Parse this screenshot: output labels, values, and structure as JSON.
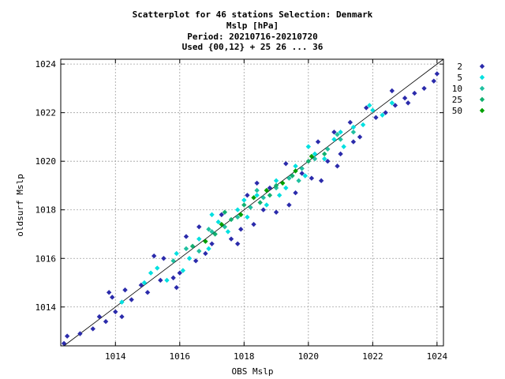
{
  "chart_data": {
    "type": "scatter",
    "title_lines": [
      "Scatterplot for   46 stations Selection: Denmark",
      "Mslp [hPa]",
      "Period: 20210716-20210720",
      "Used {00,12} + 25 26 ... 36"
    ],
    "xlabel": "OBS Mslp",
    "ylabel": "oldsurf Mslp",
    "xlim": [
      1012.3,
      1024.2
    ],
    "ylim": [
      1012.4,
      1024.2
    ],
    "xticks": [
      1014,
      1016,
      1018,
      1020,
      1022,
      1024
    ],
    "yticks": [
      1014,
      1016,
      1018,
      1020,
      1022,
      1024
    ],
    "grid": true,
    "diagonal_line": "y = x",
    "legend_position": "right",
    "series": [
      {
        "name": "2",
        "color": "#2b2bab",
        "points": [
          [
            1012.4,
            1012.5
          ],
          [
            1012.5,
            1012.8
          ],
          [
            1012.9,
            1012.9
          ],
          [
            1013.3,
            1013.1
          ],
          [
            1013.5,
            1013.6
          ],
          [
            1013.7,
            1013.4
          ],
          [
            1014.0,
            1013.8
          ],
          [
            1014.2,
            1013.6
          ],
          [
            1014.5,
            1014.3
          ],
          [
            1014.8,
            1014.9
          ],
          [
            1014.3,
            1014.7
          ],
          [
            1013.9,
            1014.4
          ],
          [
            1015.0,
            1014.6
          ],
          [
            1015.4,
            1015.1
          ],
          [
            1015.8,
            1015.2
          ],
          [
            1016.0,
            1015.4
          ],
          [
            1015.5,
            1016.0
          ],
          [
            1016.2,
            1016.9
          ],
          [
            1016.5,
            1015.9
          ],
          [
            1016.8,
            1016.2
          ],
          [
            1017.0,
            1016.6
          ],
          [
            1017.3,
            1017.8
          ],
          [
            1017.6,
            1016.8
          ],
          [
            1017.9,
            1017.2
          ],
          [
            1018.1,
            1018.6
          ],
          [
            1018.3,
            1017.4
          ],
          [
            1018.6,
            1018.0
          ],
          [
            1018.8,
            1018.9
          ],
          [
            1019.0,
            1017.9
          ],
          [
            1019.3,
            1019.9
          ],
          [
            1019.6,
            1018.7
          ],
          [
            1019.8,
            1019.5
          ],
          [
            1020.1,
            1019.3
          ],
          [
            1020.3,
            1020.8
          ],
          [
            1020.6,
            1020.0
          ],
          [
            1020.8,
            1021.2
          ],
          [
            1021.0,
            1020.3
          ],
          [
            1021.3,
            1021.6
          ],
          [
            1021.6,
            1021.0
          ],
          [
            1021.8,
            1022.2
          ],
          [
            1022.1,
            1021.8
          ],
          [
            1022.4,
            1022.0
          ],
          [
            1022.7,
            1022.3
          ],
          [
            1023.0,
            1022.6
          ],
          [
            1023.3,
            1022.8
          ],
          [
            1023.6,
            1023.0
          ],
          [
            1023.9,
            1023.3
          ],
          [
            1024.0,
            1023.6
          ],
          [
            1013.8,
            1014.6
          ],
          [
            1015.2,
            1016.1
          ],
          [
            1016.6,
            1017.3
          ],
          [
            1018.4,
            1019.1
          ],
          [
            1020.4,
            1019.2
          ],
          [
            1021.4,
            1020.8
          ],
          [
            1022.6,
            1022.9
          ],
          [
            1023.1,
            1022.4
          ],
          [
            1015.9,
            1014.8
          ],
          [
            1017.8,
            1016.6
          ],
          [
            1019.4,
            1018.2
          ],
          [
            1020.9,
            1019.8
          ]
        ]
      },
      {
        "name": "5",
        "color": "#00e0e0",
        "points": [
          [
            1014.2,
            1014.2
          ],
          [
            1014.9,
            1015.0
          ],
          [
            1015.3,
            1015.6
          ],
          [
            1015.6,
            1015.1
          ],
          [
            1015.9,
            1016.2
          ],
          [
            1016.3,
            1016.0
          ],
          [
            1016.6,
            1016.8
          ],
          [
            1016.9,
            1016.4
          ],
          [
            1017.2,
            1017.5
          ],
          [
            1017.5,
            1017.1
          ],
          [
            1017.8,
            1018.0
          ],
          [
            1018.1,
            1017.7
          ],
          [
            1018.4,
            1018.6
          ],
          [
            1018.7,
            1018.2
          ],
          [
            1019.0,
            1019.2
          ],
          [
            1019.3,
            1018.9
          ],
          [
            1019.6,
            1019.8
          ],
          [
            1019.9,
            1019.4
          ],
          [
            1020.2,
            1020.3
          ],
          [
            1020.5,
            1020.1
          ],
          [
            1020.8,
            1020.9
          ],
          [
            1021.1,
            1020.6
          ],
          [
            1021.4,
            1021.4
          ],
          [
            1021.7,
            1021.5
          ],
          [
            1022.0,
            1022.1
          ],
          [
            1022.3,
            1021.9
          ],
          [
            1022.6,
            1022.4
          ],
          [
            1015.1,
            1015.4
          ],
          [
            1016.1,
            1015.5
          ],
          [
            1017.0,
            1017.8
          ],
          [
            1018.0,
            1018.4
          ],
          [
            1019.1,
            1018.6
          ],
          [
            1020.0,
            1020.6
          ],
          [
            1021.0,
            1021.2
          ],
          [
            1021.9,
            1022.3
          ]
        ]
      },
      {
        "name": "10",
        "color": "#20c0a0",
        "points": [
          [
            1015.8,
            1015.9
          ],
          [
            1016.2,
            1016.4
          ],
          [
            1016.6,
            1016.3
          ],
          [
            1017.0,
            1017.1
          ],
          [
            1017.4,
            1017.3
          ],
          [
            1017.8,
            1017.7
          ],
          [
            1018.2,
            1018.1
          ],
          [
            1018.6,
            1018.5
          ],
          [
            1019.0,
            1018.9
          ],
          [
            1019.4,
            1019.3
          ],
          [
            1019.8,
            1019.7
          ],
          [
            1020.2,
            1020.1
          ],
          [
            1020.6,
            1020.5
          ],
          [
            1021.0,
            1020.9
          ],
          [
            1021.4,
            1021.2
          ],
          [
            1016.9,
            1017.2
          ],
          [
            1018.4,
            1018.8
          ],
          [
            1019.7,
            1019.2
          ],
          [
            1020.9,
            1021.1
          ]
        ]
      },
      {
        "name": "25",
        "color": "#10b070",
        "points": [
          [
            1016.4,
            1016.5
          ],
          [
            1017.1,
            1017.0
          ],
          [
            1017.6,
            1017.6
          ],
          [
            1018.0,
            1018.2
          ],
          [
            1018.5,
            1018.3
          ],
          [
            1019.0,
            1019.0
          ],
          [
            1019.5,
            1019.4
          ],
          [
            1020.0,
            1020.0
          ],
          [
            1020.5,
            1020.3
          ],
          [
            1017.4,
            1017.9
          ],
          [
            1018.8,
            1018.6
          ]
        ]
      },
      {
        "name": "50",
        "color": "#00a000",
        "points": [
          [
            1016.8,
            1016.7
          ],
          [
            1017.3,
            1017.4
          ],
          [
            1017.9,
            1017.8
          ],
          [
            1018.3,
            1018.5
          ],
          [
            1018.7,
            1018.8
          ],
          [
            1019.2,
            1019.1
          ],
          [
            1019.6,
            1019.6
          ],
          [
            1020.1,
            1020.2
          ]
        ]
      }
    ]
  }
}
